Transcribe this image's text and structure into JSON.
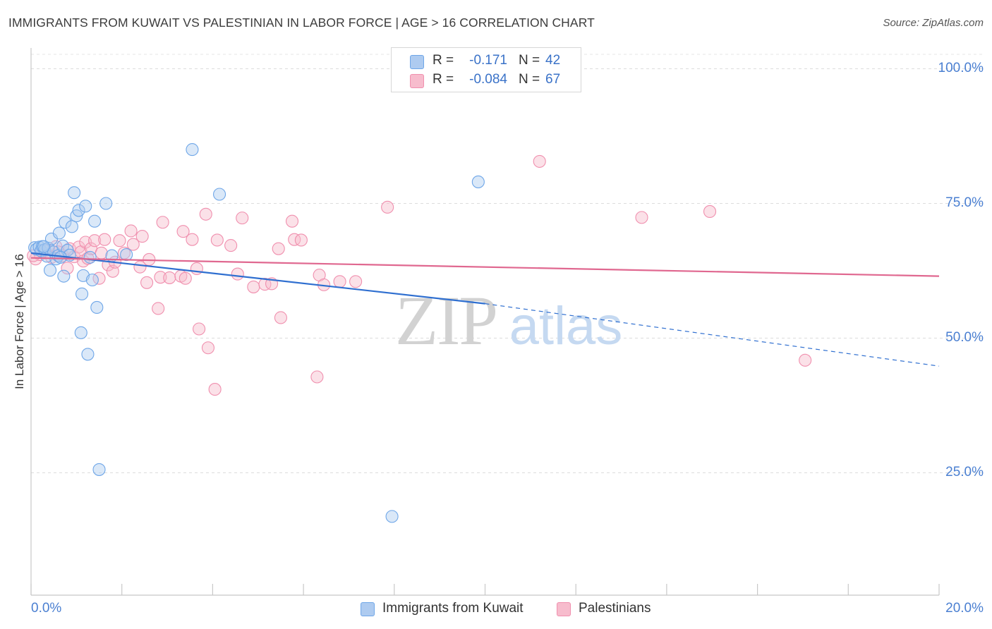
{
  "title": "IMMIGRANTS FROM KUWAIT VS PALESTINIAN IN LABOR FORCE | AGE > 16 CORRELATION CHART",
  "source": "Source: ZipAtlas.com",
  "watermark": {
    "zip": "ZIP",
    "atlas": "atlas"
  },
  "legend": {
    "rows": [
      {
        "r_label": "R =",
        "r_value": "-0.171",
        "n_label": "N =",
        "n_value": "42",
        "color": "#aecbf0"
      },
      {
        "r_label": "R =",
        "r_value": "-0.084",
        "n_label": "N =",
        "n_value": "67",
        "color": "#f7bccd"
      }
    ]
  },
  "chart_data": {
    "type": "scatter",
    "title": "IMMIGRANTS FROM KUWAIT VS PALESTINIAN IN LABOR FORCE | AGE > 16 CORRELATION CHART",
    "xlabel": "",
    "ylabel": "In Labor Force | Age > 16",
    "xlim": [
      0,
      20
    ],
    "ylim": [
      0,
      105
    ],
    "x_tick_labels": [
      "0.0%",
      "20.0%"
    ],
    "y_ticks": [
      25,
      50,
      75,
      100
    ],
    "y_tick_labels": [
      "25.0%",
      "50.0%",
      "75.0%",
      "100.0%"
    ],
    "grid": "horizontal dashed",
    "legend_position": "bottom-center",
    "series": [
      {
        "name": "Immigrants from Kuwait",
        "color": "#6ea6e8",
        "fill": "#aecbf0",
        "line_color": "#2f6fd0",
        "trend": {
          "x": [
            0,
            10
          ],
          "y": [
            65.8,
            56.4
          ],
          "dashed_to": [
            20,
            44.8
          ]
        },
        "points": [
          [
            0.08,
            66.8
          ],
          [
            0.12,
            66.5
          ],
          [
            0.18,
            66.9
          ],
          [
            0.22,
            66.2
          ],
          [
            0.25,
            67.0
          ],
          [
            0.3,
            66.4
          ],
          [
            0.35,
            65.2
          ],
          [
            0.38,
            66.7
          ],
          [
            0.42,
            62.6
          ],
          [
            0.45,
            68.4
          ],
          [
            0.5,
            66.0
          ],
          [
            0.55,
            64.7
          ],
          [
            0.6,
            65.3
          ],
          [
            0.62,
            69.5
          ],
          [
            0.7,
            67.1
          ],
          [
            0.72,
            61.5
          ],
          [
            0.75,
            71.5
          ],
          [
            0.8,
            66.3
          ],
          [
            0.85,
            65.4
          ],
          [
            0.9,
            70.7
          ],
          [
            0.95,
            77.0
          ],
          [
            1.0,
            72.7
          ],
          [
            1.05,
            73.7
          ],
          [
            1.1,
            51.0
          ],
          [
            1.12,
            58.2
          ],
          [
            1.15,
            61.6
          ],
          [
            1.2,
            74.5
          ],
          [
            1.25,
            47.0
          ],
          [
            1.3,
            65.0
          ],
          [
            1.35,
            60.8
          ],
          [
            1.4,
            71.7
          ],
          [
            1.45,
            55.7
          ],
          [
            1.5,
            25.6
          ],
          [
            1.65,
            75.0
          ],
          [
            1.78,
            65.3
          ],
          [
            2.1,
            65.5
          ],
          [
            3.55,
            85.0
          ],
          [
            4.15,
            76.7
          ],
          [
            7.95,
            16.9
          ],
          [
            9.85,
            79.0
          ],
          [
            0.28,
            67.0
          ],
          [
            0.65,
            65.0
          ]
        ]
      },
      {
        "name": "Palestinians",
        "color": "#f08fae",
        "fill": "#f7bccd",
        "line_color": "#e06890",
        "trend": {
          "x": [
            0,
            20
          ],
          "y": [
            64.9,
            61.5
          ]
        },
        "points": [
          [
            0.1,
            64.7
          ],
          [
            0.2,
            65.5
          ],
          [
            0.3,
            66.2
          ],
          [
            0.45,
            65.0
          ],
          [
            0.55,
            67.0
          ],
          [
            0.6,
            66.0
          ],
          [
            0.7,
            65.3
          ],
          [
            0.8,
            63.0
          ],
          [
            0.85,
            66.6
          ],
          [
            0.95,
            65.1
          ],
          [
            1.05,
            66.9
          ],
          [
            1.1,
            66.0
          ],
          [
            1.15,
            64.3
          ],
          [
            1.2,
            67.8
          ],
          [
            1.25,
            64.8
          ],
          [
            1.32,
            66.6
          ],
          [
            1.4,
            68.1
          ],
          [
            1.5,
            61.1
          ],
          [
            1.55,
            65.8
          ],
          [
            1.62,
            68.3
          ],
          [
            1.7,
            63.6
          ],
          [
            1.8,
            62.4
          ],
          [
            1.85,
            64.1
          ],
          [
            1.95,
            68.1
          ],
          [
            2.05,
            65.8
          ],
          [
            2.2,
            69.9
          ],
          [
            2.25,
            67.4
          ],
          [
            2.4,
            63.2
          ],
          [
            2.45,
            68.9
          ],
          [
            2.55,
            60.3
          ],
          [
            2.6,
            64.6
          ],
          [
            2.8,
            55.5
          ],
          [
            2.85,
            61.3
          ],
          [
            2.9,
            71.5
          ],
          [
            3.05,
            61.2
          ],
          [
            3.3,
            61.5
          ],
          [
            3.35,
            69.8
          ],
          [
            3.4,
            61.1
          ],
          [
            3.55,
            68.3
          ],
          [
            3.65,
            62.9
          ],
          [
            3.7,
            51.7
          ],
          [
            3.85,
            73.0
          ],
          [
            3.9,
            48.2
          ],
          [
            4.05,
            40.5
          ],
          [
            4.1,
            68.2
          ],
          [
            4.4,
            67.2
          ],
          [
            4.55,
            61.9
          ],
          [
            4.65,
            72.3
          ],
          [
            4.9,
            59.5
          ],
          [
            5.15,
            60.0
          ],
          [
            5.3,
            60.1
          ],
          [
            5.45,
            66.6
          ],
          [
            5.5,
            53.8
          ],
          [
            5.75,
            71.7
          ],
          [
            5.8,
            68.3
          ],
          [
            5.95,
            68.2
          ],
          [
            6.3,
            42.8
          ],
          [
            6.35,
            61.7
          ],
          [
            6.45,
            59.9
          ],
          [
            6.8,
            60.5
          ],
          [
            7.15,
            60.5
          ],
          [
            7.85,
            74.3
          ],
          [
            11.2,
            82.8
          ],
          [
            13.45,
            72.4
          ],
          [
            14.95,
            73.5
          ],
          [
            17.05,
            45.9
          ],
          [
            0.05,
            65.3
          ]
        ]
      }
    ]
  }
}
